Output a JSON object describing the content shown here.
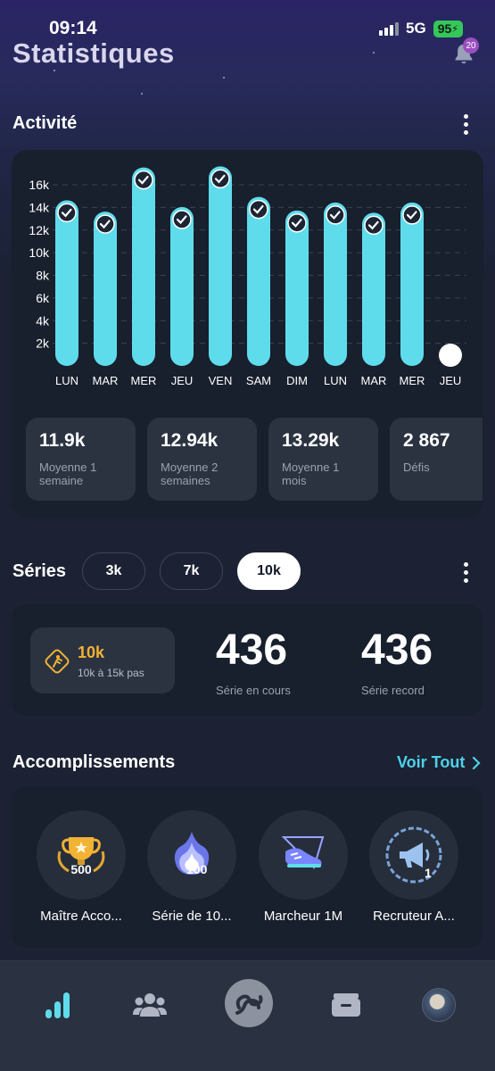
{
  "status_bar": {
    "time": "09:14",
    "network": "5G",
    "battery": "95"
  },
  "header": {
    "title": "Statistiques",
    "notification_count": "20"
  },
  "activity": {
    "title": "Activité",
    "stats": [
      {
        "value": "11.9k",
        "label": "Moyenne 1 semaine"
      },
      {
        "value": "12.94k",
        "label": "Moyenne 2 semaines"
      },
      {
        "value": "13.29k",
        "label": "Moyenne 1 mois"
      },
      {
        "value": "2 867",
        "label": "Défis"
      }
    ]
  },
  "chart_data": {
    "type": "bar",
    "categories": [
      "LUN",
      "MAR",
      "MER",
      "JEU",
      "VEN",
      "SAM",
      "DIM",
      "LUN",
      "MAR",
      "MER",
      "JEU"
    ],
    "values": [
      14000,
      13000,
      16900,
      13400,
      17000,
      14300,
      13100,
      13800,
      12900,
      13800,
      0
    ],
    "goal_reached": [
      true,
      true,
      true,
      true,
      true,
      true,
      true,
      true,
      true,
      true,
      false
    ],
    "y_ticks": [
      "2k",
      "4k",
      "6k",
      "8k",
      "10k",
      "12k",
      "14k",
      "16k"
    ],
    "ylim": [
      0,
      17500
    ],
    "grid": true,
    "bar_color": "#5fdcec"
  },
  "series": {
    "title": "Séries",
    "tabs": [
      "3k",
      "7k",
      "10k"
    ],
    "active_tab": "10k",
    "tier_name": "10k",
    "tier_range": "10k à 15k pas",
    "current_value": "436",
    "current_label": "Série en cours",
    "record_value": "436",
    "record_label": "Série record"
  },
  "achievements": {
    "title": "Accomplissements",
    "see_all": "Voir Tout",
    "items": [
      {
        "label": "Maître Acco...",
        "icon": "trophy-icon",
        "badge_text": "500"
      },
      {
        "label": "Série de 10...",
        "icon": "flame-icon",
        "badge_text": "100"
      },
      {
        "label": "Marcheur 1M",
        "icon": "sneaker-icon",
        "badge_text": ""
      },
      {
        "label": "Recruteur A...",
        "icon": "megaphone-icon",
        "badge_text": "1"
      }
    ]
  },
  "nav": {
    "items": [
      "stats-icon",
      "friends-icon",
      "home-icon",
      "wallet-icon",
      "profile-avatar"
    ],
    "active": "stats-icon"
  }
}
